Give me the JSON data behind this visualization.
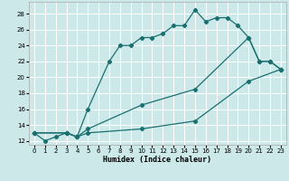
{
  "xlabel": "Humidex (Indice chaleur)",
  "ylabel": "",
  "background_color": "#cce8e8",
  "grid_color": "#ffffff",
  "line_color": "#1a7070",
  "xlim": [
    -0.5,
    23.5
  ],
  "ylim": [
    11.5,
    29.5
  ],
  "xticks": [
    0,
    1,
    2,
    3,
    4,
    5,
    6,
    7,
    8,
    9,
    10,
    11,
    12,
    13,
    14,
    15,
    16,
    17,
    18,
    19,
    20,
    21,
    22,
    23
  ],
  "yticks": [
    12,
    14,
    16,
    18,
    20,
    22,
    24,
    26,
    28
  ],
  "lines": [
    {
      "x": [
        0,
        1,
        2,
        3,
        4,
        5,
        7,
        8,
        9,
        10,
        11,
        12,
        13,
        14,
        15,
        16,
        17,
        18,
        19,
        20,
        21,
        22,
        23
      ],
      "y": [
        13,
        12,
        12.5,
        13,
        12.5,
        16,
        22,
        24,
        24,
        25,
        25,
        25.5,
        26.5,
        26.5,
        28.5,
        27,
        27.5,
        27.5,
        26.5,
        25,
        22,
        22,
        21
      ]
    },
    {
      "x": [
        0,
        3,
        4,
        5,
        10,
        15,
        20,
        21,
        22,
        23
      ],
      "y": [
        13,
        13,
        12.5,
        13.5,
        16.5,
        18.5,
        25,
        22,
        22,
        21
      ]
    },
    {
      "x": [
        0,
        3,
        4,
        5,
        10,
        15,
        20,
        23
      ],
      "y": [
        13,
        13,
        12.5,
        13,
        13.5,
        14.5,
        19.5,
        21
      ]
    }
  ]
}
